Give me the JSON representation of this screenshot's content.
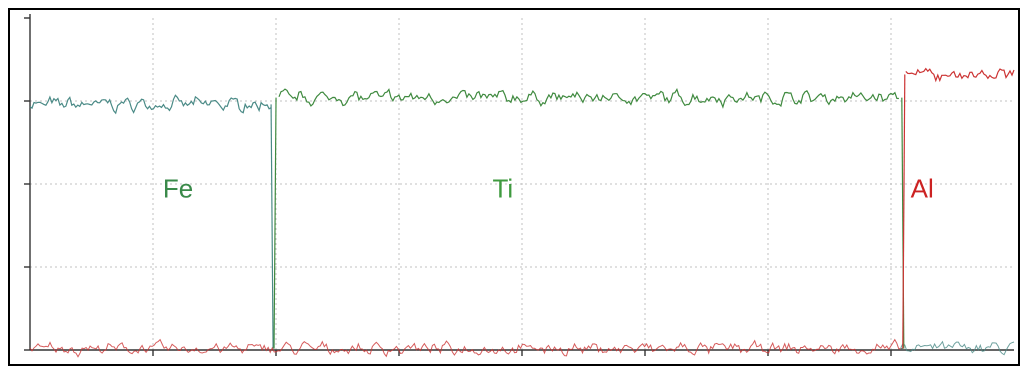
{
  "chart_data": {
    "type": "line",
    "title": "",
    "xlabel": "",
    "ylabel": "",
    "grid": true,
    "x_domain": [
      0,
      100
    ],
    "y_domain": [
      0,
      100
    ],
    "x_ticks": [
      12.5,
      25,
      37.5,
      50,
      62.5,
      75,
      87.5
    ],
    "y_ticks": [
      25,
      50,
      75
    ],
    "annotations": [
      {
        "text": "Fe",
        "x": 13.5,
        "y": 46,
        "color": "#3a8a4a"
      },
      {
        "text": "Ti",
        "x": 47,
        "y": 46,
        "color": "#3f9a3f"
      },
      {
        "text": "Al",
        "x": 89.5,
        "y": 46,
        "color": "#cc2222"
      }
    ],
    "series": [
      {
        "color": "#4a8a86",
        "segments": [
          [
            0,
            24.5,
            74,
            0.4
          ]
        ],
        "transitions": [
          [
            24.5,
            74,
            0.4
          ],
          [
            88.5,
            0.4,
            0.5
          ]
        ],
        "tail": [
          [
            88.5,
            100,
            0.5
          ]
        ]
      },
      {
        "color": "#3f8a3f",
        "segments": [
          [
            25.3,
            88.3,
            76,
            0.3
          ]
        ],
        "transitions": [
          [
            24.8,
            0.4,
            76
          ],
          [
            88.6,
            76,
            0.4
          ]
        ]
      },
      {
        "color": "#cc3333",
        "segments": [
          [
            89.0,
            100,
            83,
            0.3
          ]
        ],
        "transitions": [
          [
            88.7,
            0.4,
            83
          ]
        ],
        "baseline": [
          [
            0,
            88.5,
            0.4
          ]
        ]
      }
    ]
  }
}
